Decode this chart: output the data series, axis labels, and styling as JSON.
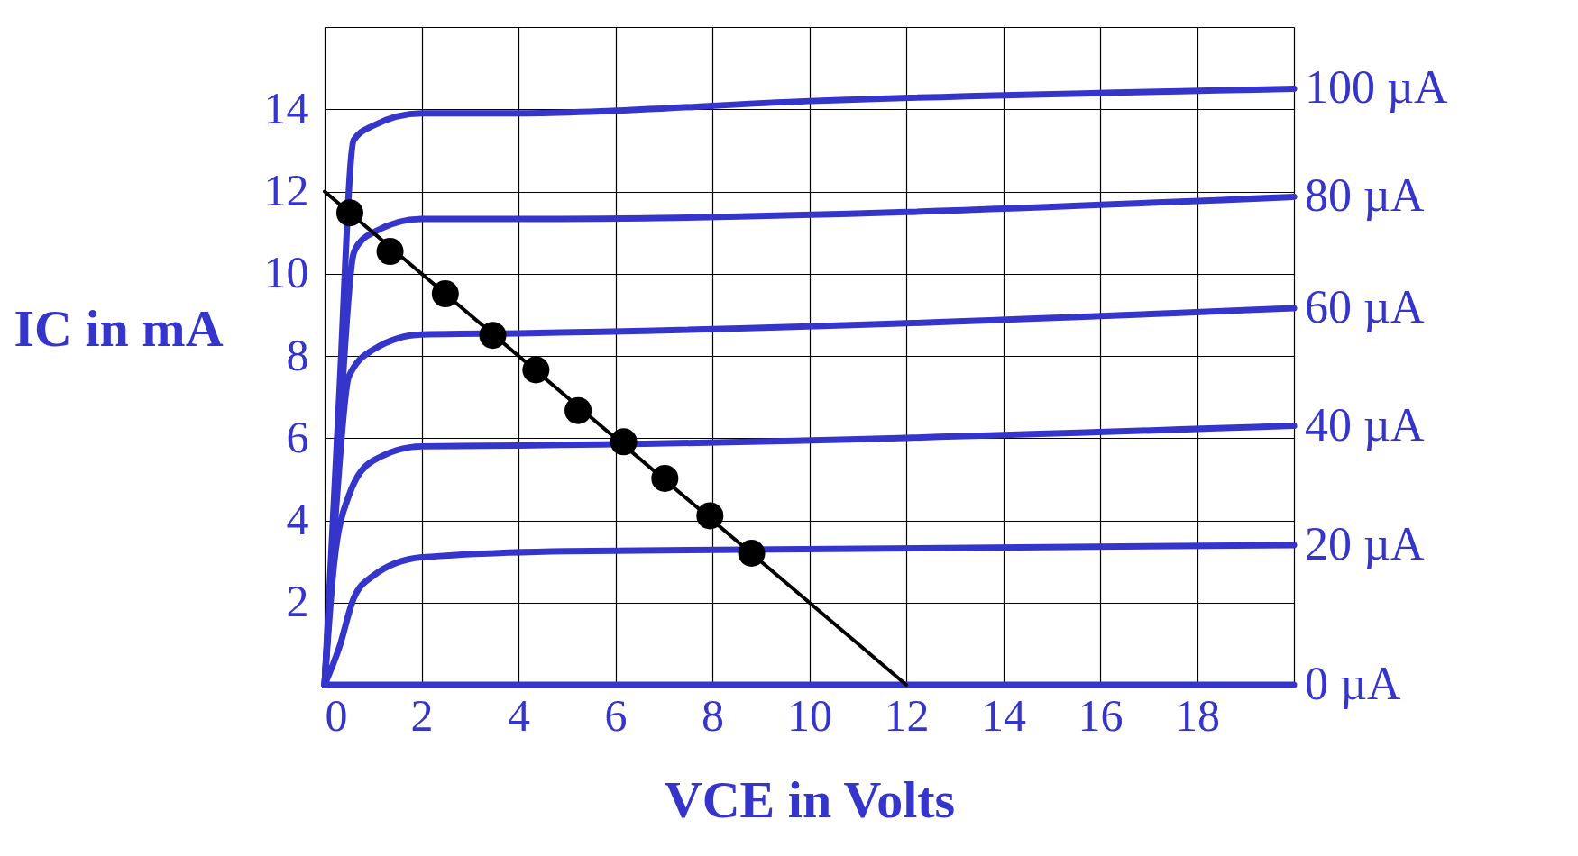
{
  "chart_data": {
    "type": "line",
    "xlabel": "VCE in Volts",
    "ylabel": "IC in mA",
    "xlim": [
      0,
      20
    ],
    "ylim": [
      0,
      16
    ],
    "xticks": [
      0,
      2,
      4,
      6,
      8,
      10,
      12,
      14,
      16,
      18,
      {
        "value": 20,
        "label": null
      }
    ],
    "yticks": [
      {
        "value": 0,
        "label": null
      },
      2,
      4,
      6,
      8,
      10,
      12,
      14,
      {
        "value": 16,
        "label": null
      }
    ],
    "grid": true,
    "marker": "none",
    "line_style": "solid",
    "series": [
      {
        "name": "100 µA",
        "color": "#3535cc",
        "x": [
          0,
          0.3,
          0.6,
          1,
          2,
          4,
          10,
          20
        ],
        "values": [
          0,
          7,
          13.25,
          13.6,
          13.9,
          13.9,
          14.2,
          14.5
        ]
      },
      {
        "name": "80 µA",
        "color": "#3535cc",
        "x": [
          0,
          0.3,
          0.6,
          0.8,
          1,
          2,
          4,
          20
        ],
        "values": [
          0,
          6,
          10.5,
          10.85,
          11.0,
          11.33,
          11.33,
          11.87
        ]
      },
      {
        "name": "60 µA",
        "color": "#3535cc",
        "x": [
          0,
          0.25,
          0.5,
          1,
          2,
          4,
          20
        ],
        "values": [
          0,
          4.5,
          7.5,
          8.15,
          8.52,
          8.55,
          9.16
        ]
      },
      {
        "name": "40 µA",
        "color": "#3535cc",
        "x": [
          0,
          0.2,
          0.5,
          1,
          2,
          4,
          20
        ],
        "values": [
          0,
          3,
          4.6,
          5.45,
          5.8,
          5.82,
          6.3
        ]
      },
      {
        "name": "20 µA",
        "color": "#3535cc",
        "x": [
          0,
          0.3,
          0.6,
          1,
          2,
          5,
          20
        ],
        "values": [
          0,
          0.9,
          2.1,
          2.65,
          3.1,
          3.25,
          3.4
        ]
      },
      {
        "name": "0 µA",
        "color": "#3535cc",
        "x": [
          0,
          20
        ],
        "values": [
          0,
          0
        ]
      },
      {
        "color": "#000000",
        "x": [
          0,
          12
        ],
        "values": [
          12,
          0
        ]
      },
      {
        "type": "scatter",
        "marker": "circle",
        "color": "#000000",
        "x": [
          0.52,
          1.35,
          2.49,
          3.47,
          4.36,
          5.23,
          6.17,
          7.02,
          7.95,
          8.81
        ],
        "values": [
          11.48,
          10.54,
          9.51,
          8.5,
          7.66,
          6.67,
          5.91,
          5.02,
          4.11,
          3.2
        ]
      }
    ]
  }
}
